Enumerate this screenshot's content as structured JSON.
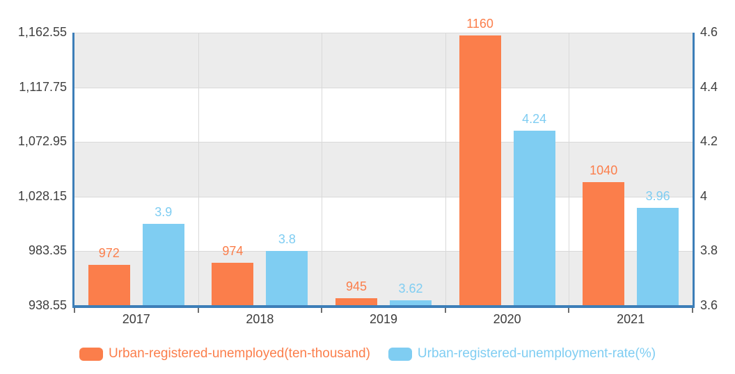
{
  "chart_data": {
    "type": "bar",
    "title": "",
    "categories": [
      "2017",
      "2018",
      "2019",
      "2020",
      "2021"
    ],
    "series": [
      {
        "name": "Urban-registered-unemployed(ten-thousand)",
        "axis": "left",
        "color": "#fb7e4b",
        "values": [
          972,
          974,
          945,
          1160,
          1040
        ],
        "labels": [
          "972",
          "974",
          "945",
          "1160",
          "1040"
        ]
      },
      {
        "name": "Urban-registered-unemployment-rate(%)",
        "axis": "right",
        "color": "#7fcdf2",
        "values": [
          3.9,
          3.8,
          3.62,
          4.24,
          3.96
        ],
        "labels": [
          "3.9",
          "3.8",
          "3.62",
          "4.24",
          "3.96"
        ]
      }
    ],
    "left_axis": {
      "min": 938.55,
      "max": 1162.55,
      "tick_values": [
        1162.55,
        1117.75,
        1072.95,
        1028.15,
        983.35,
        938.55
      ],
      "tick_labels": [
        "1,162.55",
        "1,117.75",
        "1,072.95",
        "1,028.15",
        "983.35",
        "938.55"
      ]
    },
    "right_axis": {
      "min": 3.6,
      "max": 4.6,
      "tick_values": [
        4.6,
        4.4,
        4.2,
        4.0,
        3.8,
        3.6
      ],
      "tick_labels": [
        "4.6",
        "4.4",
        "4.2",
        "4",
        "3.8",
        "3.6"
      ]
    },
    "legend": {
      "position": "bottom",
      "items": [
        {
          "label": "Urban-registered-unemployed(ten-thousand)",
          "color": "#fb7e4b"
        },
        {
          "label": "Urban-registered-unemployment-rate(%)",
          "color": "#7fcdf2"
        }
      ]
    },
    "grid": {
      "band_colors": [
        "#ececec",
        "#ffffff"
      ],
      "gridline_color": "#d9d9d9",
      "axis_line_color": "#3d7eb8",
      "vertical_gridlines": true
    }
  }
}
